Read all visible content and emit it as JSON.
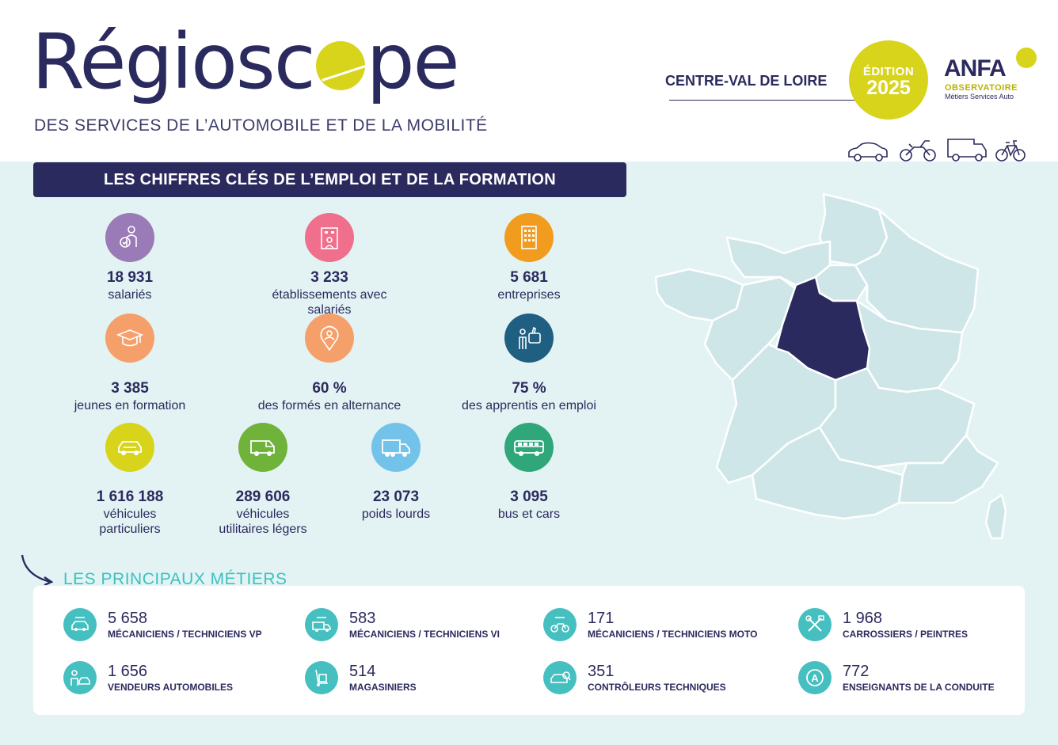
{
  "header": {
    "logo_part1": "Régiosc",
    "logo_part2": "pe",
    "tagline": "DES SERVICES DE L’AUTOMOBILE ET DE LA MOBILITÉ",
    "region": "CENTRE-VAL DE LOIRE",
    "edition_label": "ÉDITION",
    "edition_year": "2025",
    "anfa_name": "ANFA",
    "anfa_observatoire": "OBSERVATOIRE",
    "anfa_subtitle": "Métiers Services Auto"
  },
  "banner": {
    "title": "LES CHIFFRES CLÉS DE L’EMPLOI ET DE LA FORMATION"
  },
  "stats": [
    {
      "value": "18 931",
      "label": "salariés",
      "icon": "worker-icon",
      "color": "#9b7ab8"
    },
    {
      "value": "3 233",
      "label": "établissements avec salariés",
      "icon": "building-icon",
      "color": "#ef6f8c"
    },
    {
      "value": "5 681",
      "label": "entreprises",
      "icon": "office-tower-icon",
      "color": "#f29c1f"
    },
    {
      "value": "3 385",
      "label": "jeunes en formation",
      "icon": "graduation-cap-icon",
      "color": "#f5a06a"
    },
    {
      "value": "60 %",
      "label": "des formés en alternance",
      "icon": "location-person-icon",
      "color": "#f5a06a"
    },
    {
      "value": "75 %",
      "label": "des apprentis en emploi",
      "icon": "thumbs-up-icon",
      "color": "#1e5f82"
    },
    {
      "value": "1 616 188",
      "label1": "véhicules",
      "label2": "particuliers",
      "icon": "car-icon",
      "color": "#d8d41c"
    },
    {
      "value": "289 606",
      "label1": "véhicules",
      "label2": "utilitaires légers",
      "icon": "van-icon",
      "color": "#6fb33a"
    },
    {
      "value": "23 073",
      "label": "poids lourds",
      "icon": "truck-icon",
      "color": "#72c2ea"
    },
    {
      "value": "3 095",
      "label": "bus et cars",
      "icon": "bus-icon",
      "color": "#2fa77b"
    }
  ],
  "metiers": {
    "title": "LES PRINCIPAUX MÉTIERS",
    "items": [
      {
        "value": "5 658",
        "label": "MÉCANICIENS / TECHNICIENS VP",
        "icon": "car-wrench-icon"
      },
      {
        "value": "583",
        "label": "MÉCANICIENS / TECHNICIENS VI",
        "icon": "truck-wrench-icon"
      },
      {
        "value": "171",
        "label": "MÉCANICIENS / TECHNICIENS MOTO",
        "icon": "moto-wrench-icon"
      },
      {
        "value": "1 968",
        "label": "CARROSSIERS / PEINTRES",
        "icon": "paint-tools-icon"
      },
      {
        "value": "1 656",
        "label": "VENDEURS AUTOMOBILES",
        "icon": "seller-icon"
      },
      {
        "value": "514",
        "label": "MAGASINIERS",
        "icon": "hand-truck-icon"
      },
      {
        "value": "351",
        "label": "CONTRÔLEURS TECHNIQUES",
        "icon": "inspection-icon"
      },
      {
        "value": "772",
        "label": "ENSEIGNANTS DE LA CONDUITE",
        "icon": "learner-a-icon"
      }
    ]
  },
  "map": {
    "highlight_region": "Centre-Val de Loire",
    "highlight_color": "#2b2a5e",
    "base_color": "#cfe6e8"
  }
}
